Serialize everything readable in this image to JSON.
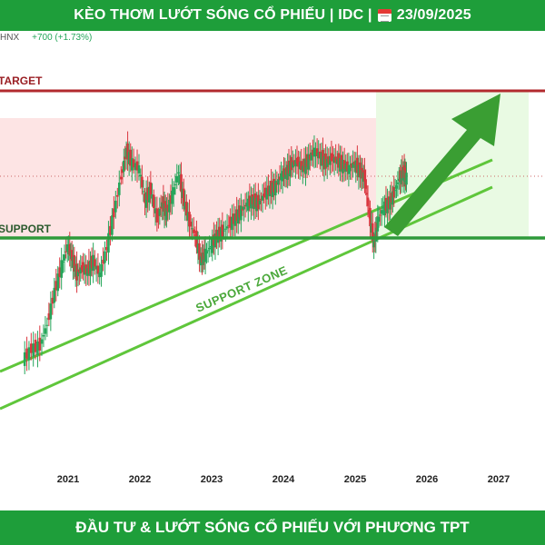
{
  "header": {
    "title_part1": "KÈO THƠM LƯỚT SÓNG CỔ PHIẾU | IDC |",
    "date": "23/09/2025",
    "calendar_icon": "calendar-icon"
  },
  "footer": {
    "text": "ĐẦU TƯ & LƯỚT SÓNG CỔ PHIẾU VỚI PHƯƠNG TPT"
  },
  "colors": {
    "banner": "#1e9e3a",
    "target_line": "#b22a2e",
    "support_line": "#2e9a3a",
    "channel": "#5fc63b",
    "up_candle": "#26a65b",
    "down_candle": "#d9363e",
    "pink_zone": "#fde4e4",
    "green_zone": "#e9fae3",
    "arrow": "#3a9e33"
  },
  "chart_data": {
    "type": "candlestick",
    "symbol_text": "HNX",
    "change_text": "+700 (+1.73%)",
    "x_ticks": [
      "2021",
      "2022",
      "2023",
      "2024",
      "2025",
      "2026",
      "2027"
    ],
    "annotations": {
      "target_label": "TARGET",
      "support_label": "SUPPORT",
      "zone_label": "SUPPORT ZONE"
    },
    "grid": false,
    "closes": [
      {
        "t": 2020.38,
        "v": 0.22
      },
      {
        "t": 2020.5,
        "v": 0.28
      },
      {
        "t": 2020.62,
        "v": 0.3
      },
      {
        "t": 2020.72,
        "v": 0.42
      },
      {
        "t": 2020.82,
        "v": 0.6
      },
      {
        "t": 2020.92,
        "v": 0.75
      },
      {
        "t": 2021.0,
        "v": 0.86
      },
      {
        "t": 2021.06,
        "v": 0.8
      },
      {
        "t": 2021.13,
        "v": 0.7
      },
      {
        "t": 2021.2,
        "v": 0.74
      },
      {
        "t": 2021.28,
        "v": 0.72
      },
      {
        "t": 2021.36,
        "v": 0.78
      },
      {
        "t": 2021.45,
        "v": 0.7
      },
      {
        "t": 2021.55,
        "v": 0.85
      },
      {
        "t": 2021.65,
        "v": 1.05
      },
      {
        "t": 2021.75,
        "v": 1.25
      },
      {
        "t": 2021.82,
        "v": 1.4
      },
      {
        "t": 2021.9,
        "v": 1.33
      },
      {
        "t": 2022.0,
        "v": 1.3
      },
      {
        "t": 2022.08,
        "v": 1.12
      },
      {
        "t": 2022.16,
        "v": 1.18
      },
      {
        "t": 2022.25,
        "v": 1.02
      },
      {
        "t": 2022.32,
        "v": 1.1
      },
      {
        "t": 2022.38,
        "v": 1.05
      },
      {
        "t": 2022.46,
        "v": 1.15
      },
      {
        "t": 2022.55,
        "v": 1.28
      },
      {
        "t": 2022.62,
        "v": 1.12
      },
      {
        "t": 2022.7,
        "v": 1.0
      },
      {
        "t": 2022.78,
        "v": 0.92
      },
      {
        "t": 2022.86,
        "v": 0.78
      },
      {
        "t": 2022.92,
        "v": 0.82
      },
      {
        "t": 2023.0,
        "v": 0.86
      },
      {
        "t": 2023.08,
        "v": 0.92
      },
      {
        "t": 2023.16,
        "v": 0.94
      },
      {
        "t": 2023.25,
        "v": 0.98
      },
      {
        "t": 2023.34,
        "v": 1.02
      },
      {
        "t": 2023.42,
        "v": 1.06
      },
      {
        "t": 2023.5,
        "v": 1.1
      },
      {
        "t": 2023.58,
        "v": 1.12
      },
      {
        "t": 2023.66,
        "v": 1.1
      },
      {
        "t": 2023.74,
        "v": 1.15
      },
      {
        "t": 2023.82,
        "v": 1.18
      },
      {
        "t": 2023.9,
        "v": 1.2
      },
      {
        "t": 2023.98,
        "v": 1.26
      },
      {
        "t": 2024.05,
        "v": 1.28
      },
      {
        "t": 2024.12,
        "v": 1.32
      },
      {
        "t": 2024.2,
        "v": 1.34
      },
      {
        "t": 2024.28,
        "v": 1.3
      },
      {
        "t": 2024.36,
        "v": 1.35
      },
      {
        "t": 2024.44,
        "v": 1.4
      },
      {
        "t": 2024.52,
        "v": 1.37
      },
      {
        "t": 2024.6,
        "v": 1.33
      },
      {
        "t": 2024.68,
        "v": 1.36
      },
      {
        "t": 2024.76,
        "v": 1.34
      },
      {
        "t": 2024.84,
        "v": 1.32
      },
      {
        "t": 2024.92,
        "v": 1.3
      },
      {
        "t": 2025.0,
        "v": 1.33
      },
      {
        "t": 2025.08,
        "v": 1.28
      },
      {
        "t": 2025.14,
        "v": 1.25
      },
      {
        "t": 2025.2,
        "v": 1.05
      },
      {
        "t": 2025.27,
        "v": 0.88
      },
      {
        "t": 2025.32,
        "v": 1.0
      },
      {
        "t": 2025.4,
        "v": 1.08
      },
      {
        "t": 2025.48,
        "v": 1.1
      },
      {
        "t": 2025.55,
        "v": 1.16
      },
      {
        "t": 2025.62,
        "v": 1.24
      },
      {
        "t": 2025.68,
        "v": 1.28
      },
      {
        "t": 2025.72,
        "v": 1.25
      }
    ]
  }
}
